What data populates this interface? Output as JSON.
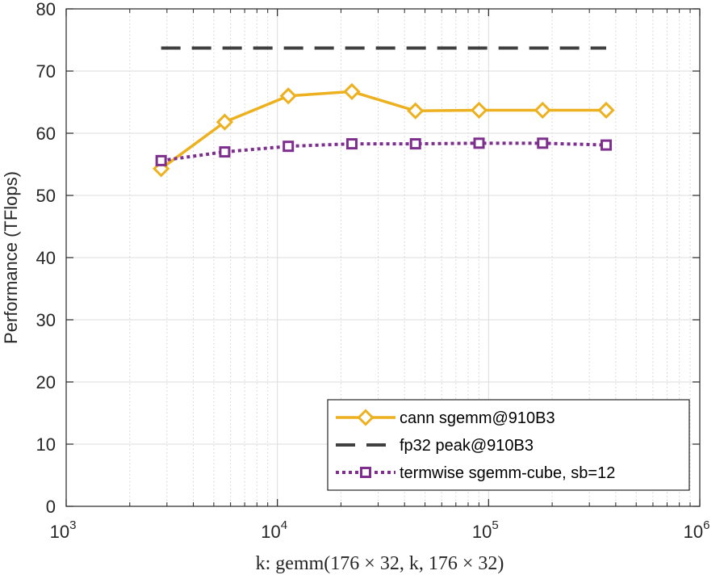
{
  "chart_data": {
    "type": "line",
    "title": "",
    "xscale": "log",
    "xlim": [
      1000,
      1000000
    ],
    "ylim": [
      0,
      80
    ],
    "yticks": [
      0,
      10,
      20,
      30,
      40,
      50,
      60,
      70,
      80
    ],
    "xticks": [
      {
        "value": 1000,
        "base": "10",
        "exp": "3"
      },
      {
        "value": 10000,
        "base": "10",
        "exp": "4"
      },
      {
        "value": 100000,
        "base": "10",
        "exp": "5"
      },
      {
        "value": 1000000,
        "base": "10",
        "exp": "6"
      }
    ],
    "ylabel": "Performance (TFlops)",
    "xlabel": "k:  gemm(176 × 32,  k,  176 × 32)",
    "grid": true,
    "legend_position": "bottom-right",
    "series": [
      {
        "name": "cann sgemm@910B3",
        "color": "#EDB120",
        "style": "solid",
        "marker": "diamond",
        "x": [
          2816,
          5632,
          11264,
          22528,
          45056,
          90112,
          180224,
          360448
        ],
        "y": [
          54.3,
          61.8,
          66.0,
          66.7,
          63.6,
          63.7,
          63.7,
          63.7
        ]
      },
      {
        "name": "fp32 peak@910B3",
        "color": "#404040",
        "style": "dashed",
        "marker": "none",
        "x": [
          2816,
          360448
        ],
        "y": [
          73.7,
          73.7
        ]
      },
      {
        "name": "termwise sgemm-cube, sb=12",
        "color": "#7E2F8E",
        "style": "dotted",
        "marker": "square",
        "x": [
          2816,
          5632,
          11264,
          22528,
          45056,
          90112,
          180224,
          360448
        ],
        "y": [
          55.6,
          57.0,
          57.9,
          58.3,
          58.3,
          58.4,
          58.4,
          58.1
        ]
      }
    ]
  }
}
